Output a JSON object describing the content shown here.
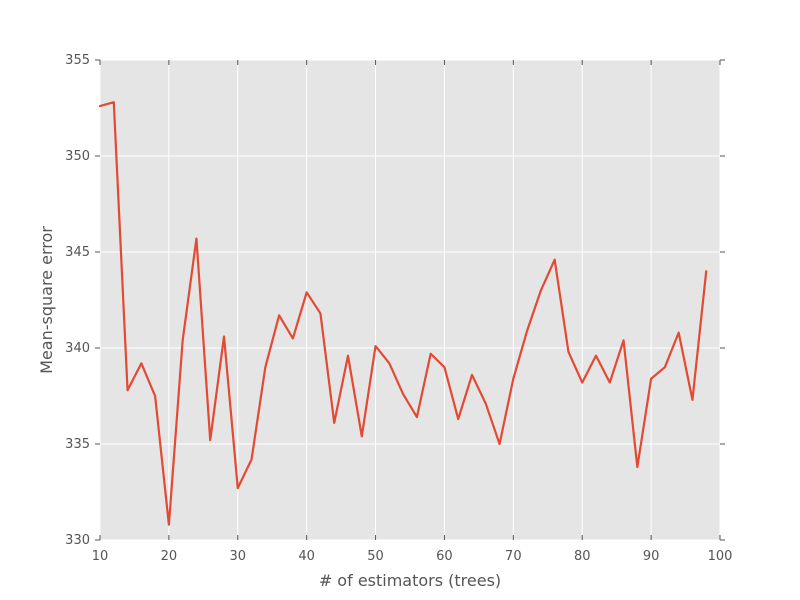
{
  "chart_data": {
    "type": "line",
    "title": "",
    "xlabel": "# of estimators (trees)",
    "ylabel": "Mean-square error",
    "xlim": [
      10,
      100
    ],
    "ylim": [
      330,
      355
    ],
    "xticks": [
      10,
      20,
      30,
      40,
      50,
      60,
      70,
      80,
      90,
      100
    ],
    "yticks": [
      330,
      335,
      340,
      345,
      350,
      355
    ],
    "grid": true,
    "legend": "none",
    "colors": {
      "line": "#E24A33",
      "plot_background": "#E5E5E5",
      "grid": "#FFFFFF",
      "text": "#555555"
    },
    "series": [
      {
        "x": [
          10,
          12,
          14,
          16,
          18,
          20,
          22,
          24,
          26,
          28,
          30,
          32,
          34,
          36,
          38,
          40,
          42,
          44,
          46,
          48,
          50,
          52,
          54,
          56,
          58,
          60,
          62,
          64,
          66,
          68,
          70,
          72,
          74,
          76,
          78,
          80,
          82,
          84,
          86,
          88,
          90,
          92,
          94,
          96,
          98
        ],
        "values": [
          352.6,
          352.8,
          337.8,
          339.2,
          337.5,
          330.8,
          340.4,
          345.7,
          335.2,
          340.6,
          332.7,
          334.2,
          339.0,
          341.7,
          340.5,
          342.9,
          341.8,
          336.1,
          339.6,
          335.4,
          340.1,
          339.2,
          337.6,
          336.4,
          339.7,
          339.0,
          336.3,
          338.6,
          337.1,
          335.0,
          338.4,
          340.9,
          343.0,
          344.6,
          339.8,
          338.2,
          339.6,
          338.2,
          340.4,
          333.8,
          338.4,
          339.0,
          340.8,
          337.3,
          344.0
        ]
      }
    ]
  }
}
